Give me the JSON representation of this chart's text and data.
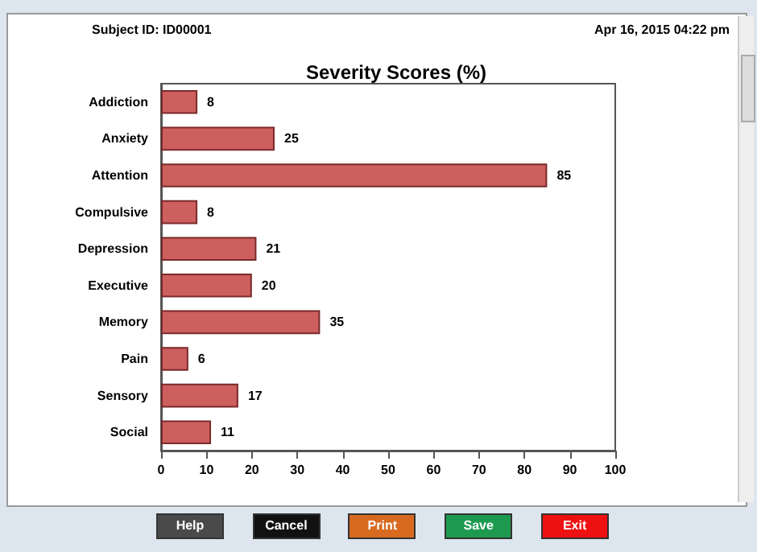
{
  "chart_data": {
    "type": "bar",
    "orientation": "horizontal",
    "title": "Severity Scores (%)",
    "categories": [
      "Addiction",
      "Anxiety",
      "Attention",
      "Compulsive",
      "Depression",
      "Executive",
      "Memory",
      "Pain",
      "Sensory",
      "Social"
    ],
    "values": [
      8,
      25,
      85,
      8,
      21,
      20,
      35,
      6,
      17,
      11
    ],
    "color": "#cd5f5f",
    "data_labels": true,
    "grid": false,
    "xlim": [
      0,
      100
    ],
    "xticks": [
      0,
      10,
      20,
      30,
      40,
      50,
      60,
      70,
      80,
      90,
      100
    ],
    "annotations": [
      "Subject ID: ID00001",
      "Apr 16, 2015  04:22 pm",
      "Help",
      "Cancel",
      "Print",
      "Save",
      "Exit"
    ]
  }
}
